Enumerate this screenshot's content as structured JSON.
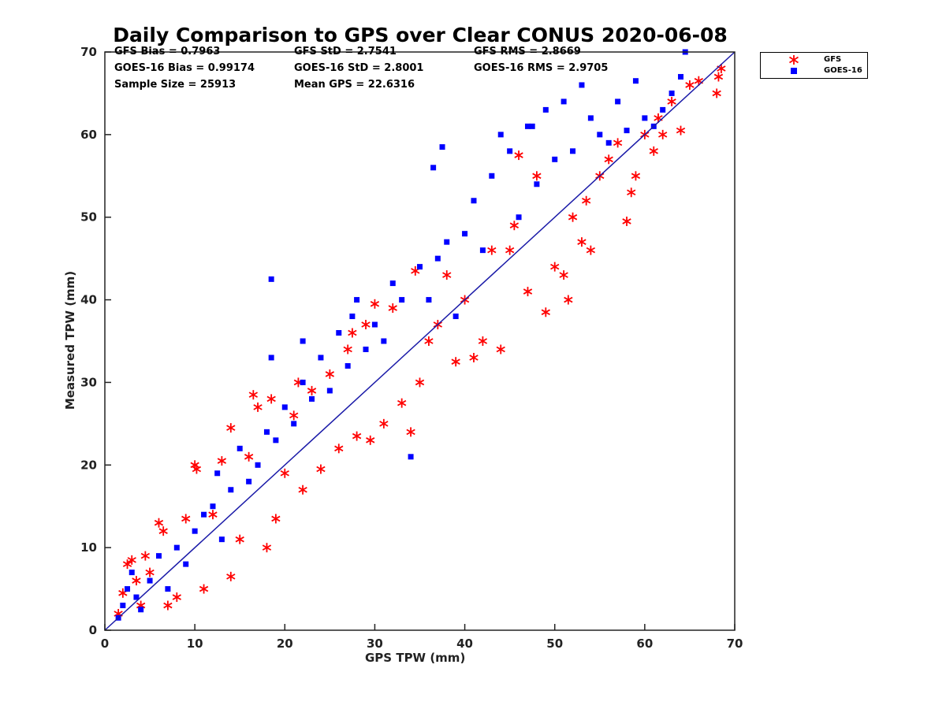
{
  "chart_data": {
    "type": "scatter",
    "title": "Daily Comparison to GPS over Clear CONUS 2020-06-08",
    "xlabel": "GPS TPW (mm)",
    "ylabel": "Measured TPW (mm)",
    "xlim": [
      0,
      70
    ],
    "ylim": [
      0,
      70
    ],
    "xticks": [
      "0",
      "10",
      "20",
      "30",
      "40",
      "50",
      "60",
      "70"
    ],
    "yticks": [
      "0",
      "10",
      "20",
      "30",
      "40",
      "50",
      "60",
      "70"
    ],
    "grid": false,
    "legend_position": "outside-top-right",
    "reference_line": {
      "from": [
        0,
        0
      ],
      "to": [
        70,
        70
      ],
      "color": "#1a1aa8"
    },
    "stats": [
      {
        "label": "GFS Bias = 0.7963"
      },
      {
        "label": "GFS StD = 2.7541"
      },
      {
        "label": "GFS RMS = 2.8669"
      },
      {
        "label": "GOES-16 Bias = 0.99174"
      },
      {
        "label": "GOES-16 StD = 2.8001"
      },
      {
        "label": "GOES-16 RMS = 2.9705"
      },
      {
        "label": "Sample Size = 25913"
      },
      {
        "label": "Mean GPS = 22.6316"
      }
    ],
    "series": [
      {
        "name": "GFS",
        "marker": "asterisk",
        "color": "#ff0000",
        "points": [
          [
            1.5,
            2
          ],
          [
            2,
            4.5
          ],
          [
            2.5,
            8
          ],
          [
            3,
            8.5
          ],
          [
            3.5,
            6
          ],
          [
            4,
            3
          ],
          [
            4.5,
            9
          ],
          [
            5,
            7
          ],
          [
            6,
            13
          ],
          [
            6.5,
            12
          ],
          [
            7,
            3
          ],
          [
            8,
            4
          ],
          [
            9,
            13.5
          ],
          [
            10,
            20
          ],
          [
            10.2,
            19.5
          ],
          [
            11,
            5
          ],
          [
            12,
            14
          ],
          [
            13,
            20.5
          ],
          [
            14,
            6.5
          ],
          [
            14,
            24.5
          ],
          [
            15,
            11
          ],
          [
            16,
            21
          ],
          [
            16.5,
            28.5
          ],
          [
            17,
            27
          ],
          [
            18,
            10
          ],
          [
            18.5,
            28
          ],
          [
            19,
            13.5
          ],
          [
            20,
            19
          ],
          [
            21,
            26
          ],
          [
            21.5,
            30
          ],
          [
            22,
            17
          ],
          [
            23,
            29
          ],
          [
            24,
            19.5
          ],
          [
            25,
            31
          ],
          [
            26,
            22
          ],
          [
            27,
            34
          ],
          [
            27.5,
            36
          ],
          [
            28,
            23.5
          ],
          [
            29,
            37
          ],
          [
            29.5,
            23
          ],
          [
            30,
            39.5
          ],
          [
            31,
            25
          ],
          [
            32,
            39
          ],
          [
            33,
            27.5
          ],
          [
            34,
            24
          ],
          [
            34.5,
            43.5
          ],
          [
            35,
            30
          ],
          [
            36,
            35
          ],
          [
            37,
            37
          ],
          [
            38,
            43
          ],
          [
            39,
            32.5
          ],
          [
            40,
            40
          ],
          [
            41,
            33
          ],
          [
            42,
            35
          ],
          [
            43,
            46
          ],
          [
            44,
            34
          ],
          [
            45,
            46
          ],
          [
            45.5,
            49
          ],
          [
            46,
            57.5
          ],
          [
            47,
            41
          ],
          [
            48,
            55
          ],
          [
            49,
            38.5
          ],
          [
            50,
            44
          ],
          [
            51,
            43
          ],
          [
            51.5,
            40
          ],
          [
            52,
            50
          ],
          [
            53,
            47
          ],
          [
            53.5,
            52
          ],
          [
            54,
            46
          ],
          [
            55,
            55
          ],
          [
            56,
            57
          ],
          [
            57,
            59
          ],
          [
            58,
            49.5
          ],
          [
            58.5,
            53
          ],
          [
            59,
            55
          ],
          [
            60,
            60
          ],
          [
            61,
            58
          ],
          [
            61.5,
            62
          ],
          [
            62,
            60
          ],
          [
            63,
            64
          ],
          [
            64,
            60.5
          ],
          [
            65,
            66
          ],
          [
            66,
            66.5
          ],
          [
            68,
            65
          ],
          [
            68.5,
            68
          ],
          [
            68.2,
            67
          ]
        ]
      },
      {
        "name": "GOES-16",
        "marker": "square",
        "color": "#0000ff",
        "points": [
          [
            1.5,
            1.5
          ],
          [
            2,
            3
          ],
          [
            2.5,
            5
          ],
          [
            3,
            7
          ],
          [
            3.5,
            4
          ],
          [
            4,
            2.5
          ],
          [
            5,
            6
          ],
          [
            6,
            9
          ],
          [
            7,
            5
          ],
          [
            8,
            10
          ],
          [
            9,
            8
          ],
          [
            10,
            12
          ],
          [
            11,
            14
          ],
          [
            12,
            15
          ],
          [
            12.5,
            19
          ],
          [
            13,
            11
          ],
          [
            14,
            17
          ],
          [
            15,
            22
          ],
          [
            16,
            18
          ],
          [
            17,
            20
          ],
          [
            18,
            24
          ],
          [
            18.5,
            33
          ],
          [
            19,
            23
          ],
          [
            20,
            27
          ],
          [
            21,
            25
          ],
          [
            22,
            30
          ],
          [
            22,
            35
          ],
          [
            23,
            28
          ],
          [
            24,
            33
          ],
          [
            25,
            29
          ],
          [
            26,
            36
          ],
          [
            27,
            32
          ],
          [
            27.5,
            38
          ],
          [
            28,
            40
          ],
          [
            29,
            34
          ],
          [
            30,
            37
          ],
          [
            31,
            35
          ],
          [
            32,
            42
          ],
          [
            33,
            40
          ],
          [
            34,
            21
          ],
          [
            35,
            44
          ],
          [
            36,
            40
          ],
          [
            37,
            45
          ],
          [
            38,
            47
          ],
          [
            39,
            38
          ],
          [
            40,
            48
          ],
          [
            41,
            52
          ],
          [
            42,
            46
          ],
          [
            43,
            55
          ],
          [
            44,
            60
          ],
          [
            45,
            58
          ],
          [
            46,
            50
          ],
          [
            47,
            61
          ],
          [
            48,
            54
          ],
          [
            49,
            63
          ],
          [
            50,
            57
          ],
          [
            51,
            64
          ],
          [
            52,
            58
          ],
          [
            53,
            66
          ],
          [
            54,
            62
          ],
          [
            55,
            60
          ],
          [
            56,
            59
          ],
          [
            57,
            64
          ],
          [
            58,
            60.5
          ],
          [
            59,
            66.5
          ],
          [
            60,
            62
          ],
          [
            61,
            61
          ],
          [
            62,
            63
          ],
          [
            63,
            65
          ],
          [
            64,
            67
          ],
          [
            64.5,
            70
          ],
          [
            36.5,
            56
          ],
          [
            37.5,
            58.5
          ],
          [
            18.5,
            42.5
          ],
          [
            47.5,
            61
          ]
        ]
      }
    ]
  }
}
